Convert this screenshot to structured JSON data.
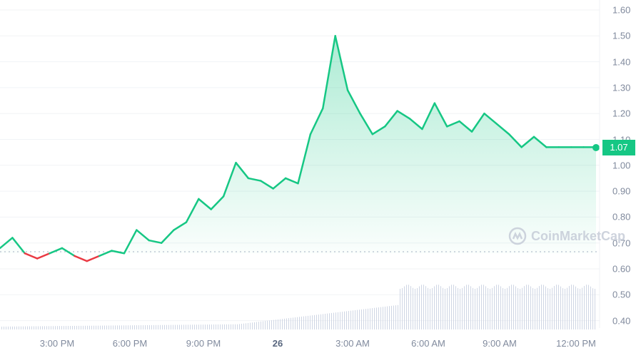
{
  "chart_data": {
    "type": "line",
    "title": "",
    "xlabel": "",
    "ylabel": "",
    "ylim": [
      0.36,
      1.63
    ],
    "grid": true,
    "y_ticks": [
      "1.60",
      "1.50",
      "1.40",
      "1.30",
      "1.20",
      "1.10",
      "1.00",
      "0.90",
      "0.80",
      "0.70",
      "0.60",
      "0.50",
      "0.40"
    ],
    "x_ticks": [
      "3:00 PM",
      "6:00 PM",
      "9:00 PM",
      "26",
      "3:00 AM",
      "6:00 AM",
      "9:00 AM",
      "12:00 PM"
    ],
    "reference_line": 0.66,
    "current_price": "1.07",
    "colors": {
      "up": "#16c784",
      "down": "#ea3943",
      "axis_text": "#808a9d",
      "volume": "#cfd6e4"
    },
    "series": [
      {
        "name": "Price",
        "x_hours_from_start": [
          0,
          0.5,
          1,
          1.5,
          2,
          2.5,
          3,
          3.5,
          4,
          4.5,
          5,
          5.5,
          6,
          6.5,
          7,
          7.5,
          8,
          8.5,
          9,
          9.5,
          10,
          10.5,
          11,
          11.5,
          12,
          12.5,
          13,
          13.5,
          14,
          14.5,
          15,
          15.5,
          16,
          16.5,
          17,
          17.5,
          18,
          18.5,
          19,
          19.5,
          20,
          20.5,
          21,
          21.5,
          22,
          22.5,
          23,
          23.5,
          24
        ],
        "values": [
          0.68,
          0.72,
          0.66,
          0.64,
          0.66,
          0.68,
          0.65,
          0.63,
          0.65,
          0.67,
          0.66,
          0.75,
          0.71,
          0.7,
          0.75,
          0.78,
          0.87,
          0.83,
          0.88,
          1.01,
          0.95,
          0.94,
          0.91,
          0.95,
          0.93,
          1.12,
          1.22,
          1.5,
          1.29,
          1.2,
          1.12,
          1.15,
          1.21,
          1.18,
          1.14,
          1.24,
          1.15,
          1.17,
          1.13,
          1.2,
          1.16,
          1.12,
          1.07,
          1.11,
          1.07,
          1.07,
          1.07,
          1.07,
          1.07
        ]
      },
      {
        "name": "Volume",
        "values": "relative bars rising from ~0.37 baseline to ~0.55 after 5:00 AM"
      }
    ]
  },
  "axis": {
    "y": [
      "1.60",
      "1.50",
      "1.40",
      "1.30",
      "1.20",
      "1.10",
      "1.00",
      "0.90",
      "0.80",
      "0.70",
      "0.60",
      "0.50",
      "0.40"
    ],
    "x": [
      "3:00 PM",
      "6:00 PM",
      "9:00 PM",
      "26",
      "3:00 AM",
      "6:00 AM",
      "9:00 AM",
      "12:00 PM"
    ]
  },
  "badge": {
    "price": "1.07"
  },
  "watermark": {
    "text": "CoinMarketCap"
  }
}
